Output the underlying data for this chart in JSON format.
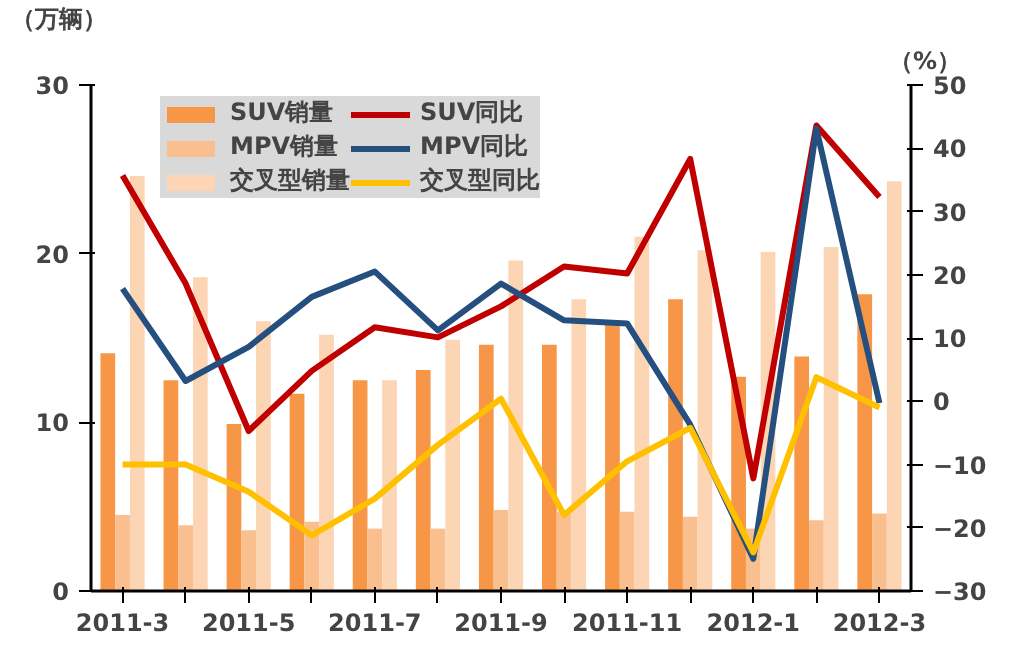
{
  "chart_data": {
    "type": "bar",
    "ylabel": "（万辆）",
    "y2label": "（%）",
    "categories": [
      "2011-3",
      null,
      "2011-5",
      null,
      "2011-7",
      null,
      "2011-9",
      null,
      "2011-11",
      null,
      "2012-1",
      null,
      "2012-3"
    ],
    "series": [
      {
        "name": "SUV销量",
        "color": "#f79646",
        "values": [
          14.1,
          12.5,
          9.9,
          11.7,
          12.5,
          13.1,
          14.6,
          14.6,
          16.0,
          17.3,
          12.7,
          13.9,
          17.6
        ]
      },
      {
        "name": "MPV销量",
        "color": "#fabf8f",
        "values": [
          4.5,
          3.9,
          3.6,
          4.1,
          3.7,
          3.7,
          4.8,
          4.7,
          4.7,
          4.4,
          3.7,
          4.2,
          4.6
        ]
      },
      {
        "name": "交叉型销量",
        "color": "#fcd5b4",
        "values": [
          24.6,
          18.6,
          16.0,
          15.2,
          12.5,
          14.9,
          19.6,
          17.3,
          21.0,
          20.2,
          20.1,
          20.4,
          24.3
        ]
      },
      {
        "name": "SUV同比",
        "type": "line",
        "axis": "y2",
        "color": "#c00000",
        "values": [
          35.7,
          18.6,
          -4.7,
          4.8,
          11.7,
          10.1,
          15.0,
          21.3,
          20.2,
          38.3,
          -12.2,
          43.6,
          32.3
        ]
      },
      {
        "name": "MPV同比",
        "type": "line",
        "axis": "y2",
        "color": "#254f7f",
        "values": [
          17.8,
          3.2,
          8.6,
          16.5,
          20.5,
          11.2,
          18.6,
          12.8,
          12.3,
          -3.7,
          -24.9,
          43.1,
          -0.3
        ]
      },
      {
        "name": "交叉型同比",
        "type": "line",
        "axis": "y2",
        "color": "#ffc000",
        "values": [
          -10.0,
          -10.0,
          -14.3,
          -21.2,
          -15.4,
          -6.9,
          0.4,
          -18.0,
          -9.5,
          -4.2,
          -23.9,
          3.8,
          -1.0
        ]
      }
    ],
    "ylim": [
      0,
      30
    ],
    "yticks": [
      0,
      10,
      20,
      30
    ],
    "y2lim": [
      -30,
      50
    ],
    "y2ticks": [
      -30,
      -20,
      -10,
      0,
      10,
      20,
      30,
      40,
      50
    ],
    "grid": false,
    "legend": "top",
    "line_style": "solid"
  }
}
